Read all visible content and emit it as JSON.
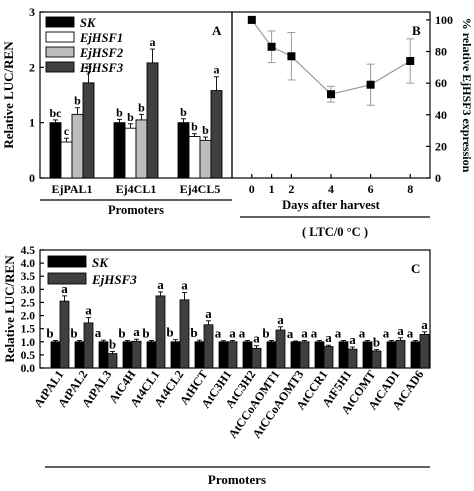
{
  "chart_data": [
    {
      "panel": "A",
      "type": "bar",
      "ylabel": "Relative LUC/REN",
      "xlabel": "Promoters",
      "ylim": [
        0,
        3
      ],
      "yticks": [
        0,
        1,
        2,
        3
      ],
      "categories": [
        "EjPAL1",
        "Ej4CL1",
        "Ej4CL5"
      ],
      "series": [
        {
          "name": "SK",
          "color": "#000000",
          "values": [
            1.0,
            1.0,
            1.0
          ],
          "errors": [
            0.05,
            0.06,
            0.07
          ],
          "letters": [
            "bc",
            "b",
            "b"
          ]
        },
        {
          "name": "EjHSF1",
          "color": "#ffffff",
          "values": [
            0.65,
            0.9,
            0.75
          ],
          "errors": [
            0.07,
            0.08,
            0.05
          ],
          "letters": [
            "c",
            "b",
            "b"
          ]
        },
        {
          "name": "EjHSF2",
          "color": "#bdbdbd",
          "values": [
            1.15,
            1.05,
            0.68
          ],
          "errors": [
            0.12,
            0.1,
            0.06
          ],
          "letters": [
            "b",
            "b",
            "b"
          ]
        },
        {
          "name": "EjHSF3",
          "color": "#404040",
          "values": [
            1.72,
            2.08,
            1.58
          ],
          "errors": [
            0.2,
            0.25,
            0.25
          ],
          "letters": [
            "a",
            "a",
            "a"
          ]
        }
      ],
      "legend": "top-left"
    },
    {
      "panel": "B",
      "type": "line",
      "ylabel": "% relative EjHSF3 expression",
      "xlabel": "Days after harvest",
      "xlabel2": "( LTC/0 °C )",
      "xlim": [
        -1,
        9
      ],
      "ylim": [
        0,
        105
      ],
      "xticks": [
        0,
        1,
        2,
        4,
        6,
        8
      ],
      "yticks": [
        0,
        20,
        40,
        60,
        80,
        100
      ],
      "x": [
        0,
        1,
        2,
        4,
        6,
        8
      ],
      "y": [
        100,
        83,
        77,
        53,
        59,
        74
      ],
      "errors": [
        2,
        10,
        15,
        5,
        13,
        14
      ]
    },
    {
      "panel": "C",
      "type": "bar",
      "ylabel": "Relative LUC/REN",
      "xlabel": "Promoters",
      "ylim": [
        0,
        4.5
      ],
      "yticks": [
        0,
        0.5,
        1,
        1.5,
        2,
        2.5,
        3,
        3.5,
        4,
        4.5
      ],
      "yticklabels": [
        "0.0",
        "0.5",
        "1.0",
        "1.5",
        "2.0",
        "2.5",
        "3.0",
        "3.5",
        "4.0",
        "4.5"
      ],
      "categories": [
        "AtPAL1",
        "AtPAL2",
        "AtPAL3",
        "AtC4H",
        "At4CL1",
        "At4CL2",
        "AtHCT",
        "AtC3H1",
        "AtC3H2",
        "AtCCoAOMT1",
        "AtCCoAOMT3",
        "AtCCR1",
        "AtF5H1",
        "AtCOMT",
        "AtCAD1",
        "AtCAD6"
      ],
      "series": [
        {
          "name": "SK",
          "color": "#000000",
          "values": [
            1.0,
            1.0,
            1.0,
            1.0,
            1.0,
            1.0,
            1.0,
            1.0,
            1.0,
            1.0,
            1.0,
            1.0,
            1.0,
            1.0,
            1.0,
            1.0
          ],
          "errors": [
            0.05,
            0.05,
            0.06,
            0.05,
            0.05,
            0.08,
            0.06,
            0.04,
            0.05,
            0.05,
            0.03,
            0.05,
            0.05,
            0.05,
            0.05,
            0.05
          ],
          "letters": [
            "b",
            "b",
            "a",
            "b",
            "b",
            "b",
            "b",
            "a",
            "a",
            "b",
            "a",
            "a",
            "a",
            "a",
            "a",
            "a"
          ]
        },
        {
          "name": "EjHSF3",
          "color": "#404040",
          "values": [
            2.55,
            1.72,
            0.55,
            1.02,
            2.75,
            2.6,
            1.65,
            1.0,
            0.75,
            1.45,
            1.0,
            0.82,
            0.72,
            0.65,
            1.05,
            1.28
          ],
          "errors": [
            0.2,
            0.2,
            0.08,
            0.08,
            0.15,
            0.28,
            0.15,
            0.05,
            0.1,
            0.12,
            0.05,
            0.05,
            0.08,
            0.05,
            0.1,
            0.1
          ],
          "letters": [
            "a",
            "a",
            "b",
            "a",
            "a",
            "a",
            "a",
            "a",
            "a",
            "a",
            "a",
            "a",
            "a",
            "b",
            "a",
            "a"
          ]
        }
      ],
      "legend": "top-left"
    }
  ]
}
